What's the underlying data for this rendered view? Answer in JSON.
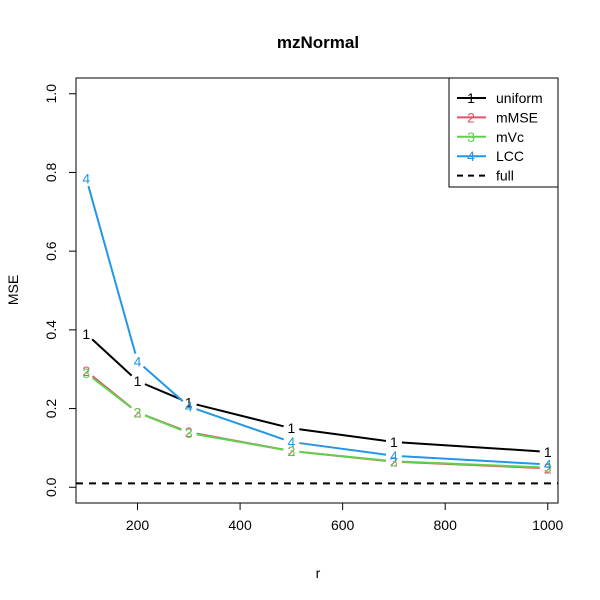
{
  "chart_data": {
    "type": "line",
    "title": "mzNormal",
    "xlabel": "r",
    "ylabel": "MSE",
    "xlim": [
      80,
      1020
    ],
    "ylim": [
      -0.04,
      1.04
    ],
    "x_ticks": [
      "200",
      "400",
      "600",
      "800",
      "1000"
    ],
    "y_ticks": [
      "0.0",
      "0.2",
      "0.4",
      "0.6",
      "0.8",
      "1.0"
    ],
    "x": [
      100,
      200,
      300,
      500,
      700,
      1000
    ],
    "series": [
      {
        "name": "uniform",
        "marker": "1",
        "color": "#000000",
        "values": [
          0.39,
          0.27,
          0.215,
          0.15,
          0.115,
          0.09
        ]
      },
      {
        "name": "mMSE",
        "marker": "2",
        "color": "#DF536B",
        "values": [
          0.295,
          0.19,
          0.14,
          0.092,
          0.065,
          0.048
        ]
      },
      {
        "name": "mVc",
        "marker": "3",
        "color": "#61D04F",
        "values": [
          0.29,
          0.19,
          0.138,
          0.092,
          0.066,
          0.05
        ]
      },
      {
        "name": "LCC",
        "marker": "4",
        "color": "#2297E6",
        "values": [
          0.785,
          0.32,
          0.205,
          0.115,
          0.08,
          0.058
        ]
      }
    ],
    "reference_line": {
      "name": "full",
      "value": 0.01,
      "style": "dashed",
      "color": "#000000"
    },
    "legend_position": "top-right",
    "grid": false
  }
}
